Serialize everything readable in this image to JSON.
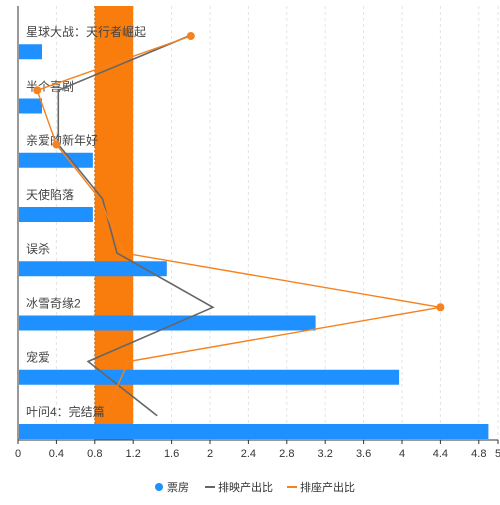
{
  "chart_data": {
    "type": "bar",
    "orientation": "horizontal",
    "categories": [
      "星球大战：天行者崛起",
      "半个喜剧",
      "亲爱的新年好",
      "天使陷落",
      "误杀",
      "冰雪奇缘2",
      "宠爱",
      "叶问4：完结篇"
    ],
    "series": [
      {
        "name": "票房",
        "type": "bar",
        "values": [
          0.25,
          0.25,
          0.78,
          0.78,
          1.55,
          3.1,
          3.97,
          4.9
        ]
      },
      {
        "name": "排映产出比",
        "type": "line",
        "values": [
          1.78,
          0.42,
          0.42,
          0.88,
          1.03,
          2.03,
          0.73,
          1.45
        ]
      },
      {
        "name": "排座产出比",
        "type": "line",
        "values": [
          1.8,
          0.2,
          0.4,
          0.85,
          1.1,
          4.4,
          1.15,
          0.9
        ]
      }
    ],
    "xlim": [
      0,
      5
    ],
    "xticks": [
      "0",
      "0.4",
      "0.8",
      "1.2",
      "1.6",
      "2",
      "2.4",
      "2.8",
      "3.2",
      "3.6",
      "4",
      "4.4",
      "4.8",
      "5"
    ],
    "highlight_band": [
      0.8,
      1.2
    ],
    "colors": {
      "票房": "#1e90ff",
      "排映产出比": "#666666",
      "排座产出比": "#f5821f",
      "band": "#f97d0d"
    },
    "grid": true,
    "legend_position": "bottom"
  }
}
